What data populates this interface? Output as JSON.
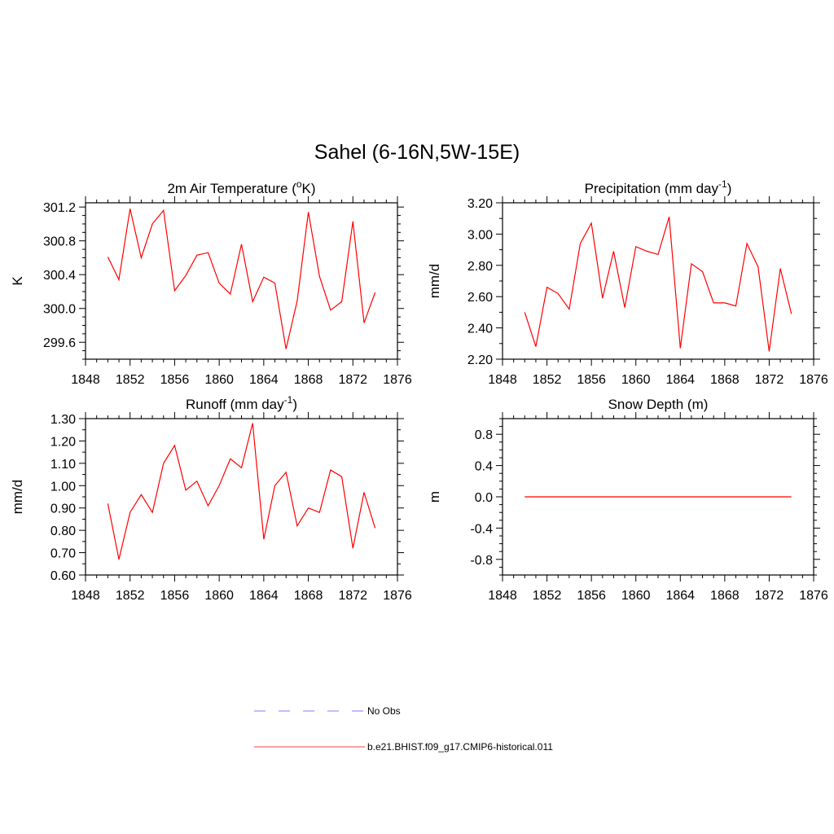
{
  "figure": {
    "title": "Sahel (6-16N,5W-15E)"
  },
  "chart_data": [
    {
      "type": "line",
      "title": "2m Air Temperature (",
      "title_sup": "o",
      "title_after": "K)",
      "xlabel": "",
      "ylabel": "K",
      "xlim": [
        1848,
        1876
      ],
      "ylim": [
        299.4,
        301.25
      ],
      "xticks": [
        1848,
        1852,
        1856,
        1860,
        1864,
        1868,
        1872,
        1876
      ],
      "xtick_labels": [
        "1848",
        "1852",
        "1856",
        "1860",
        "1864",
        "1868",
        "1872",
        "1876"
      ],
      "yticks": [
        299.6,
        300.0,
        300.4,
        300.8,
        301.2
      ],
      "ytick_labels": [
        "299.6",
        "300.0",
        "300.4",
        "300.8",
        "301.2"
      ],
      "x": [
        1850,
        1851,
        1852,
        1853,
        1854,
        1855,
        1856,
        1857,
        1858,
        1859,
        1860,
        1861,
        1862,
        1863,
        1864,
        1865,
        1866,
        1867,
        1868,
        1869,
        1870,
        1871,
        1872,
        1873,
        1874
      ],
      "series": [
        {
          "name": "b.e21.BHIST.f09_g17.CMIP6-historical.011",
          "color": "#ff0000",
          "values": [
            300.61,
            300.34,
            301.18,
            300.6,
            301.0,
            301.16,
            300.21,
            300.39,
            300.63,
            300.66,
            300.3,
            300.17,
            300.76,
            300.08,
            300.37,
            300.3,
            299.52,
            300.09,
            301.14,
            300.38,
            299.98,
            300.08,
            301.03,
            299.83,
            300.19
          ]
        }
      ]
    },
    {
      "type": "line",
      "title": "Precipitation (mm day",
      "title_sup": "-1",
      "title_after": ")",
      "xlabel": "",
      "ylabel": "mm/d",
      "xlim": [
        1848,
        1876
      ],
      "ylim": [
        2.2,
        3.2
      ],
      "xticks": [
        1848,
        1852,
        1856,
        1860,
        1864,
        1868,
        1872,
        1876
      ],
      "xtick_labels": [
        "1848",
        "1852",
        "1856",
        "1860",
        "1864",
        "1868",
        "1872",
        "1876"
      ],
      "yticks": [
        2.2,
        2.4,
        2.6,
        2.8,
        3.0,
        3.2
      ],
      "ytick_labels": [
        "2.20",
        "2.40",
        "2.60",
        "2.80",
        "3.00",
        "3.20"
      ],
      "x": [
        1850,
        1851,
        1852,
        1853,
        1854,
        1855,
        1856,
        1857,
        1858,
        1859,
        1860,
        1861,
        1862,
        1863,
        1864,
        1865,
        1866,
        1867,
        1868,
        1869,
        1870,
        1871,
        1872,
        1873,
        1874
      ],
      "series": [
        {
          "name": "b.e21.BHIST.f09_g17.CMIP6-historical.011",
          "color": "#ff0000",
          "values": [
            2.5,
            2.28,
            2.66,
            2.62,
            2.52,
            2.94,
            3.07,
            2.59,
            2.89,
            2.53,
            2.92,
            2.89,
            2.87,
            3.11,
            2.27,
            2.81,
            2.76,
            2.56,
            2.56,
            2.54,
            2.94,
            2.79,
            2.25,
            2.78,
            2.49
          ]
        }
      ]
    },
    {
      "type": "line",
      "title": "Runoff (mm day",
      "title_sup": "-1",
      "title_after": ")",
      "xlabel": "",
      "ylabel": "mm/d",
      "xlim": [
        1848,
        1876
      ],
      "ylim": [
        0.6,
        1.3
      ],
      "xticks": [
        1848,
        1852,
        1856,
        1860,
        1864,
        1868,
        1872,
        1876
      ],
      "xtick_labels": [
        "1848",
        "1852",
        "1856",
        "1860",
        "1864",
        "1868",
        "1872",
        "1876"
      ],
      "yticks": [
        0.6,
        0.7,
        0.8,
        0.9,
        1.0,
        1.1,
        1.2,
        1.3
      ],
      "ytick_labels": [
        "0.60",
        "0.70",
        "0.80",
        "0.90",
        "1.00",
        "1.10",
        "1.20",
        "1.30"
      ],
      "x": [
        1850,
        1851,
        1852,
        1853,
        1854,
        1855,
        1856,
        1857,
        1858,
        1859,
        1860,
        1861,
        1862,
        1863,
        1864,
        1865,
        1866,
        1867,
        1868,
        1869,
        1870,
        1871,
        1872,
        1873,
        1874
      ],
      "series": [
        {
          "name": "b.e21.BHIST.f09_g17.CMIP6-historical.011",
          "color": "#ff0000",
          "values": [
            0.92,
            0.67,
            0.88,
            0.96,
            0.88,
            1.1,
            1.18,
            0.98,
            1.02,
            0.91,
            1.0,
            1.12,
            1.08,
            1.28,
            0.76,
            1.0,
            1.06,
            0.82,
            0.9,
            0.88,
            1.07,
            1.04,
            0.72,
            0.97,
            0.81
          ]
        }
      ]
    },
    {
      "type": "line",
      "title": "Snow Depth (m)",
      "title_sup": "",
      "title_after": "",
      "xlabel": "",
      "ylabel": "m",
      "xlim": [
        1848,
        1876
      ],
      "ylim": [
        -1.0,
        1.0
      ],
      "xticks": [
        1848,
        1852,
        1856,
        1860,
        1864,
        1868,
        1872,
        1876
      ],
      "xtick_labels": [
        "1848",
        "1852",
        "1856",
        "1860",
        "1864",
        "1868",
        "1872",
        "1876"
      ],
      "yticks": [
        -0.8,
        -0.4,
        0.0,
        0.4,
        0.8
      ],
      "ytick_labels": [
        "-0.8",
        "-0.4",
        "0.0",
        "0.4",
        "0.8"
      ],
      "x": [
        1850,
        1851,
        1852,
        1853,
        1854,
        1855,
        1856,
        1857,
        1858,
        1859,
        1860,
        1861,
        1862,
        1863,
        1864,
        1865,
        1866,
        1867,
        1868,
        1869,
        1870,
        1871,
        1872,
        1873,
        1874
      ],
      "series": [
        {
          "name": "b.e21.BHIST.f09_g17.CMIP6-historical.011",
          "color": "#ff0000",
          "values": [
            0,
            0,
            0,
            0,
            0,
            0,
            0,
            0,
            0,
            0,
            0,
            0,
            0,
            0,
            0,
            0,
            0,
            0,
            0,
            0,
            0,
            0,
            0,
            0,
            0
          ]
        }
      ]
    }
  ],
  "legend": {
    "entries": [
      {
        "label": "No Obs",
        "color": "#9999ff",
        "style": "dashed"
      },
      {
        "label": "b.e21.BHIST.f09_g17.CMIP6-historical.011",
        "color": "#ff6666",
        "style": "solid"
      }
    ]
  }
}
